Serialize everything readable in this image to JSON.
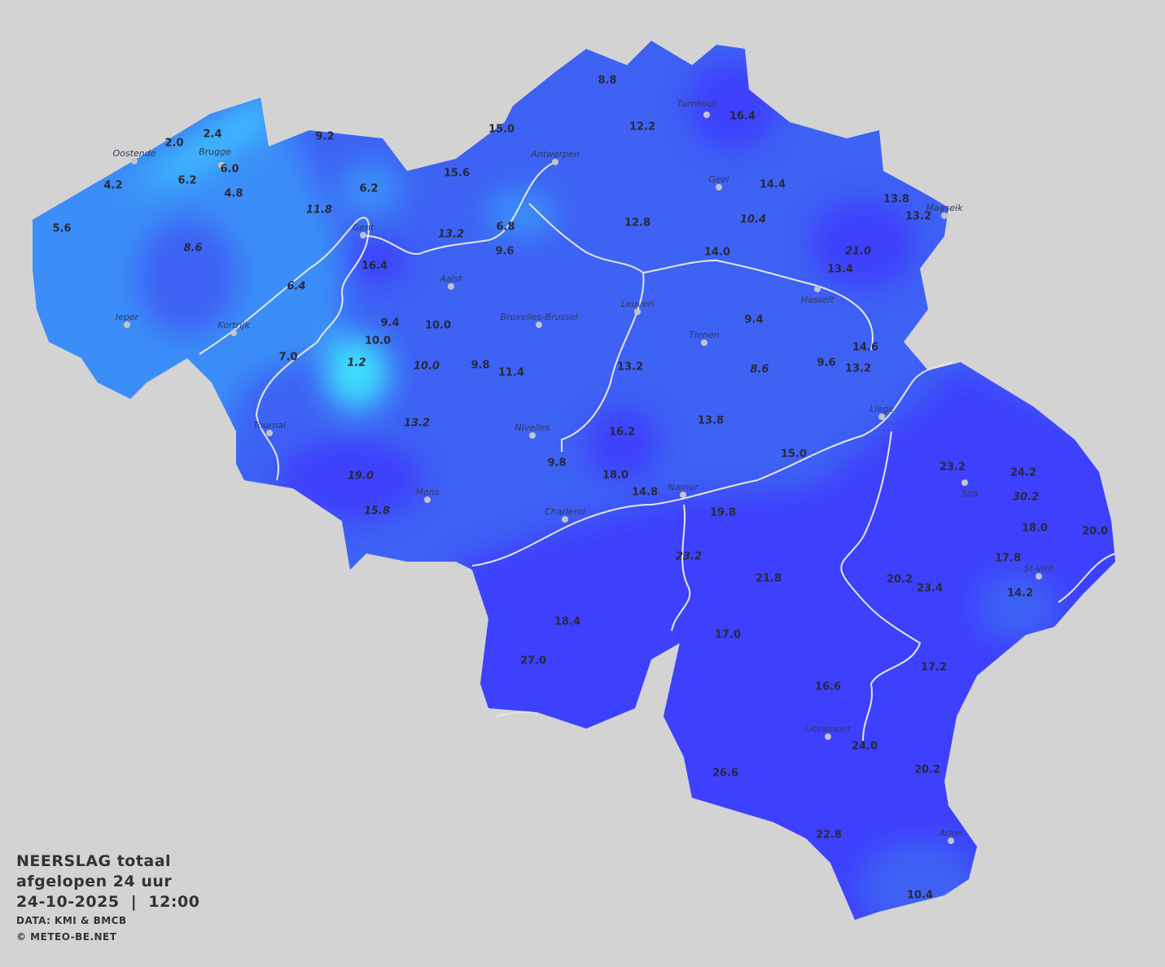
{
  "legend": {
    "title_line1": "NEERSLAG totaal",
    "title_line2": "afgelopen 24 uur",
    "datetime": "24-10-2025  |  12:00",
    "source": "DATA: KMI & BMCB",
    "copyright": "© METEO-BE.NET"
  },
  "colors": {
    "background": "#d3d3d3",
    "low": "#3dbcfc",
    "light": "#3b8ef8",
    "mid": "#3d62f4",
    "high": "#3e3ffc",
    "rivers": "#e6e6e6"
  },
  "unit": "mm",
  "cities": [
    "Oostende",
    "Brugge",
    "Ieper",
    "Kortrijk",
    "Gent",
    "Aalst",
    "Tournai",
    "Mons",
    "Antwerpen",
    "Turnhout",
    "Geel",
    "Maaseik",
    "Hasselt",
    "Leuven",
    "Bruxelles-Brussel",
    "Tienen",
    "Nivelles",
    "Charleroi",
    "Namur",
    "Liege",
    "Spa",
    "St-Vith",
    "Libramont",
    "Arlon"
  ],
  "values": [
    "2.4",
    "2.0",
    "4.2",
    "6.2",
    "6.0",
    "4.8",
    "5.6",
    "8.6",
    "9.2",
    "6.2",
    "11.8",
    "16.4",
    "6.4",
    "9.4",
    "10.0",
    "10.0",
    "7.0",
    "1.2",
    "10.0",
    "9.8",
    "11.4",
    "13.2",
    "19.0",
    "15.8",
    "15.0",
    "15.6",
    "13.2",
    "6.8",
    "9.6",
    "8.8",
    "12.2",
    "16.4",
    "14.4",
    "12.8",
    "10.4",
    "14.0",
    "13.8",
    "13.2",
    "21.0",
    "13.4",
    "9.4",
    "8.6",
    "9.6",
    "14.6",
    "13.2",
    "13.2",
    "16.2",
    "13.8",
    "15.0",
    "9.8",
    "18.0",
    "14.8",
    "19.8",
    "23.2",
    "24.2",
    "30.2",
    "18.0",
    "20.0",
    "17.8",
    "20.2",
    "23.4",
    "14.2",
    "23.2",
    "21.8",
    "18.4",
    "17.0",
    "27.0",
    "17.2",
    "16.6",
    "24.0",
    "20.2",
    "26.6",
    "22.8",
    "10.4"
  ]
}
